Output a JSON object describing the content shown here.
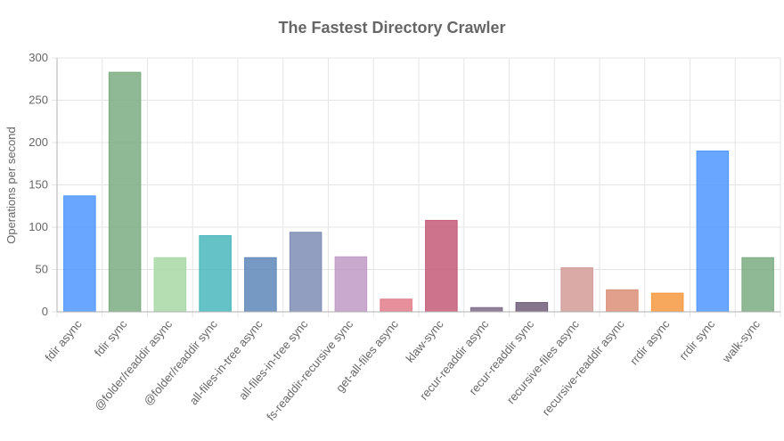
{
  "chart_data": {
    "type": "bar",
    "title": "The Fastest Directory Crawler",
    "xlabel": "",
    "ylabel": "Operations per second",
    "ylim": [
      0,
      300
    ],
    "yticks": [
      0,
      50,
      100,
      150,
      200,
      250,
      300
    ],
    "grid": true,
    "legend": "none",
    "categories": [
      "fdir async",
      "fdir sync",
      "@folder/readdir async",
      "@folder/readdir sync",
      "all-files-in-tree async",
      "all-files-in-tree sync",
      "fs-readdir-recursive sync",
      "get-all-files async",
      "klaw-sync",
      "recur-readdir async",
      "recur-readdir sync",
      "recursive-files async",
      "recursive-readdir async",
      "rrdir async",
      "rrdir sync",
      "walk-sync"
    ],
    "values": [
      137,
      283,
      64,
      90,
      64,
      94,
      65,
      15,
      108,
      5,
      11,
      52,
      26,
      22,
      190,
      64
    ],
    "colors": [
      "#4f97ff",
      "#7bab82",
      "#a8d8a6",
      "#4ab7bc",
      "#5e87b9",
      "#7f8db5",
      "#c09bc6",
      "#e27d89",
      "#c55a78",
      "#7f6c87",
      "#705e7a",
      "#d29b96",
      "#dc8f78",
      "#f7993f",
      "#4f97ff",
      "#7bab82"
    ]
  }
}
